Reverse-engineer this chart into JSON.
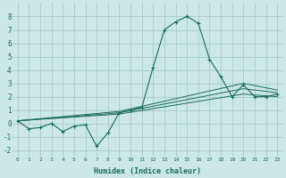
{
  "xlabel": "Humidex (Indice chaleur)",
  "bg_color": "#cce8e6",
  "grid_color": "#aacfcd",
  "line_color": "#1a6b5a",
  "x_data": [
    0,
    1,
    2,
    3,
    4,
    5,
    6,
    7,
    8,
    9,
    10,
    11,
    12,
    13,
    14,
    15,
    16,
    17,
    18,
    19,
    20,
    21,
    22,
    23
  ],
  "curve1_y": [
    0.2,
    -0.4,
    -0.3,
    0.0,
    -0.6,
    -0.2,
    -0.1,
    -1.7,
    -0.7,
    0.8,
    1.0,
    1.2,
    4.2,
    7.0,
    7.6,
    8.0,
    7.5,
    4.8,
    3.5,
    2.0,
    2.9,
    2.0,
    2.0,
    2.2
  ],
  "line1_x": [
    0,
    9,
    20,
    23
  ],
  "line1_y": [
    0.2,
    0.7,
    2.2,
    2.0
  ],
  "line2_x": [
    0,
    9,
    20,
    23
  ],
  "line2_y": [
    0.2,
    0.8,
    2.6,
    2.3
  ],
  "line3_x": [
    0,
    9,
    20,
    23
  ],
  "line3_y": [
    0.2,
    0.9,
    3.0,
    2.5
  ],
  "xlim": [
    -0.5,
    23.5
  ],
  "ylim": [
    -2.5,
    9.0
  ],
  "yticks": [
    -2,
    -1,
    0,
    1,
    2,
    3,
    4,
    5,
    6,
    7,
    8
  ],
  "xticks": [
    0,
    1,
    2,
    3,
    4,
    5,
    6,
    7,
    8,
    9,
    10,
    11,
    12,
    13,
    14,
    15,
    16,
    17,
    18,
    19,
    20,
    21,
    22,
    23
  ]
}
